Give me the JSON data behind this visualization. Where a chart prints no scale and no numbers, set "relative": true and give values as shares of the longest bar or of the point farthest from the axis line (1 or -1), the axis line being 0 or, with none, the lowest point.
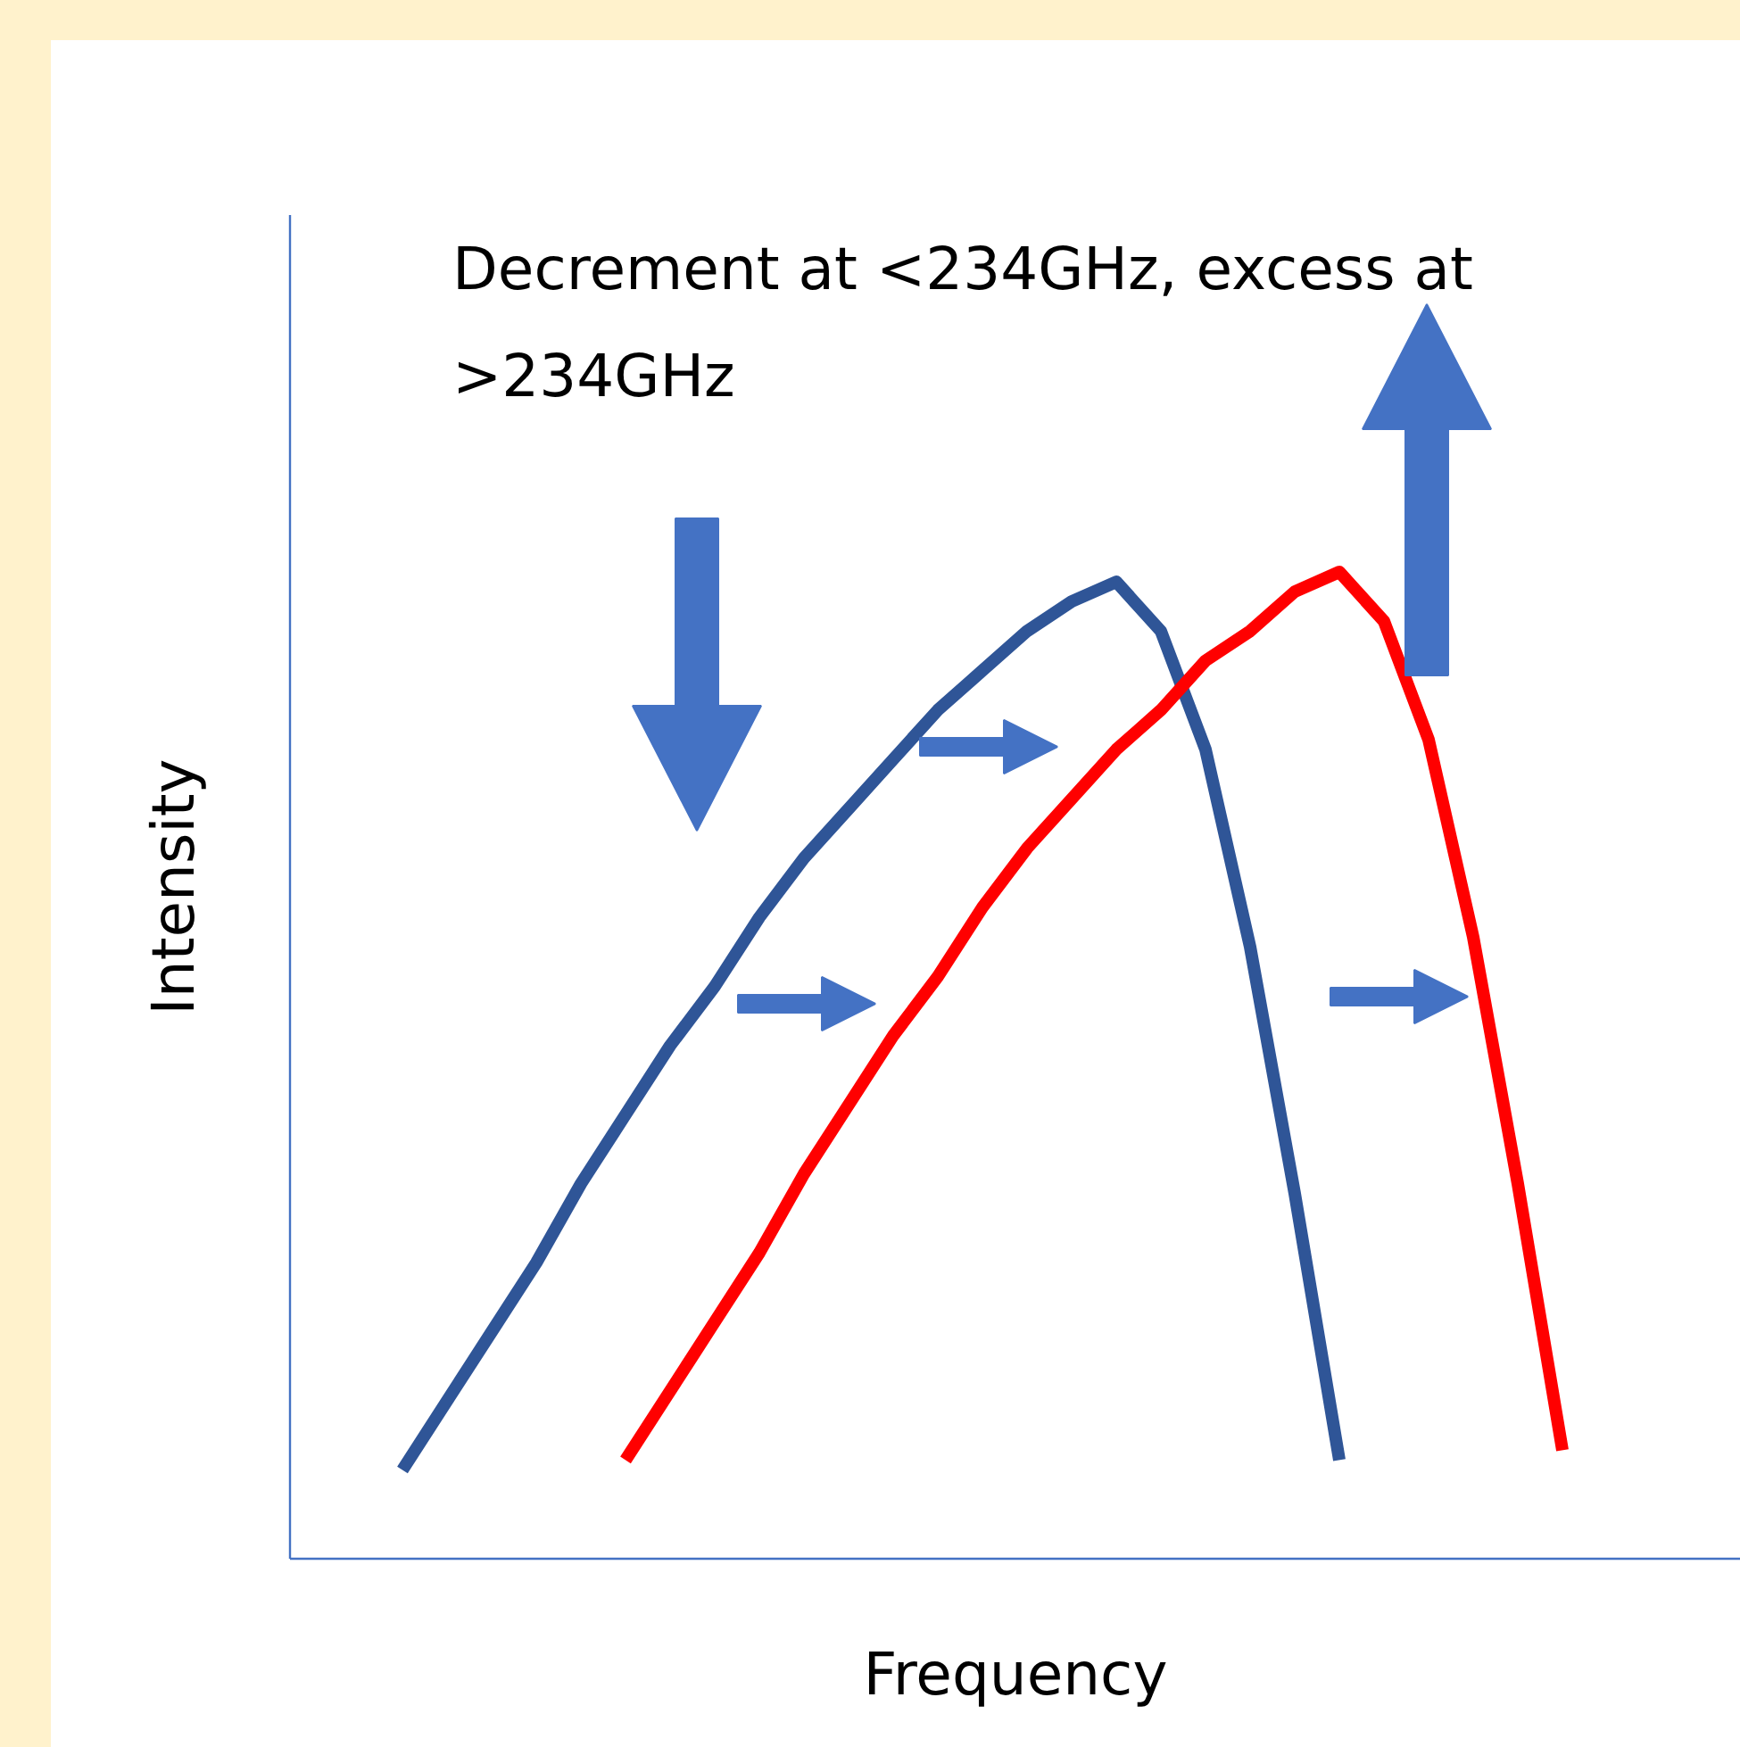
{
  "chart_data": {
    "type": "line",
    "relative": true,
    "xlabel": "Frequency",
    "ylabel": "Intensity",
    "annotations": [
      "Decrement at <234GHz, excess at >234GHz"
    ],
    "grid": false,
    "marker": "none",
    "line_style": "solid",
    "categories": [
      null,
      null,
      null,
      null,
      null,
      null,
      null,
      null,
      null,
      null,
      null,
      null,
      null,
      null,
      null,
      null,
      null,
      null,
      null,
      null,
      null,
      null,
      null,
      null,
      null,
      null,
      null
    ],
    "series": [
      {
        "color": "#2f5597",
        "values": [
          0.09,
          0.16,
          0.23,
          0.3,
          0.38,
          0.45,
          0.52,
          0.58,
          0.65,
          0.71,
          0.76,
          0.81,
          0.86,
          0.9,
          0.94,
          0.97,
          0.99,
          0.94,
          0.82,
          0.62,
          0.37,
          0.1,
          null,
          null,
          null,
          null,
          null
        ]
      },
      {
        "color": "#ff0000",
        "values": [
          null,
          null,
          null,
          null,
          null,
          0.1,
          0.17,
          0.24,
          0.31,
          0.39,
          0.46,
          0.53,
          0.59,
          0.66,
          0.72,
          0.77,
          0.82,
          0.86,
          0.91,
          0.94,
          0.98,
          1.0,
          0.95,
          0.83,
          0.63,
          0.38,
          0.11
        ]
      }
    ]
  }
}
